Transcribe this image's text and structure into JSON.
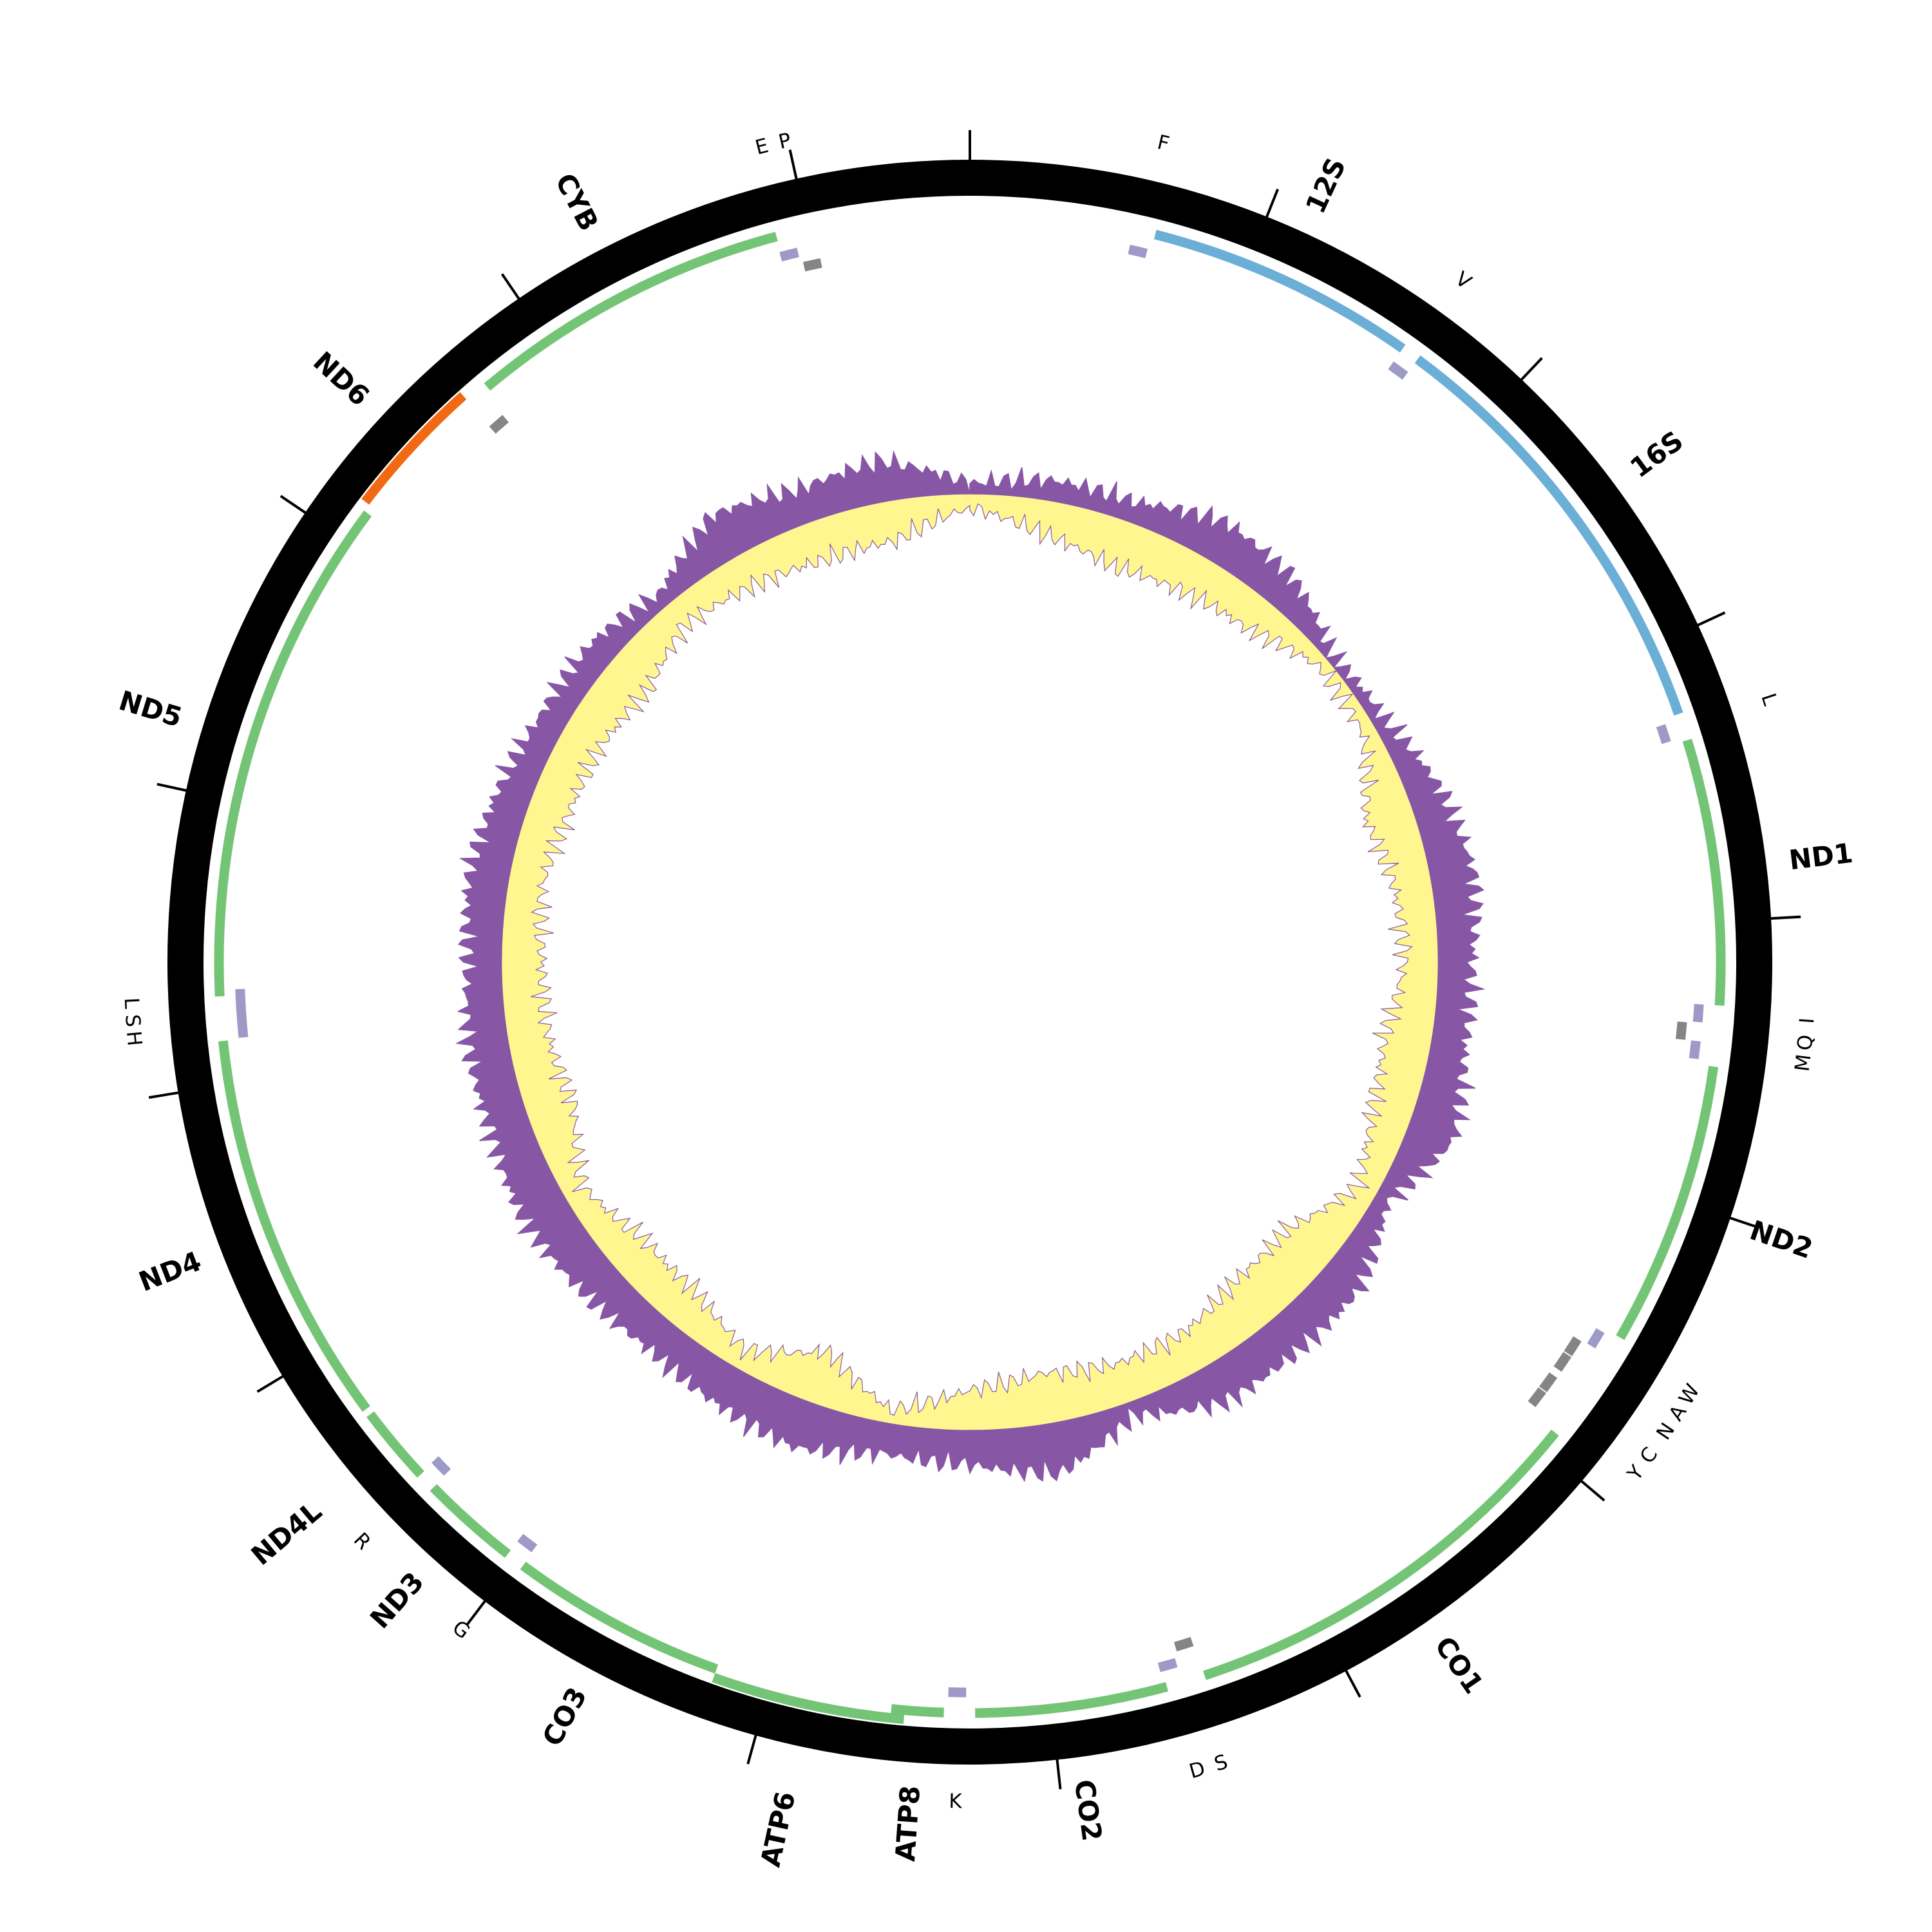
{
  "genome": {
    "genome_length_bp": 16575,
    "tick_interval_bp": 1000
  },
  "colors": {
    "backbone": "#000000",
    "protein_forward": "#74c476",
    "rrna_forward": "#6baed6",
    "gene_reverse": "#f16913",
    "trna_forward": "#9e9ac8",
    "trna_reverse": "#858585",
    "skew_outer": "#8757a6",
    "skew_inner": "#fff68f"
  },
  "genes": [
    {
      "name": "12S",
      "start": 658,
      "end": 1621,
      "strand": "+",
      "type": "rRNA"
    },
    {
      "name": "16S",
      "start": 1685,
      "end": 3255,
      "strand": "+",
      "type": "rRNA"
    },
    {
      "name": "ND1",
      "start": 3352,
      "end": 4296,
      "strand": "+",
      "type": "CDS"
    },
    {
      "name": "ND2",
      "start": 4512,
      "end": 5525,
      "strand": "+",
      "type": "CDS"
    },
    {
      "name": "CO1",
      "start": 5930,
      "end": 7449,
      "strand": "+",
      "type": "CDS"
    },
    {
      "name": "CO2",
      "start": 7587,
      "end": 8269,
      "strand": "+",
      "type": "CDS"
    },
    {
      "name": "ATP8",
      "start": 8379,
      "end": 8564,
      "strand": "+",
      "type": "CDS"
    },
    {
      "name": "ATP6",
      "start": 8517,
      "end": 9195,
      "strand": "+",
      "type": "CDS"
    },
    {
      "name": "CO3",
      "start": 9195,
      "end": 9969,
      "strand": "+",
      "type": "CDS"
    },
    {
      "name": "ND3",
      "start": 10036,
      "end": 10387,
      "strand": "+",
      "type": "CDS"
    },
    {
      "name": "ND4L",
      "start": 10451,
      "end": 10727,
      "strand": "+",
      "type": "CDS"
    },
    {
      "name": "ND4",
      "start": 10750,
      "end": 12154,
      "strand": "+",
      "type": "CDS"
    },
    {
      "name": "ND5",
      "start": 12311,
      "end": 14121,
      "strand": "+",
      "type": "CDS"
    },
    {
      "name": "ND6",
      "start": 14148,
      "end": 14650,
      "strand": "-",
      "type": "CDS"
    },
    {
      "name": "CYB",
      "start": 14733,
      "end": 15888,
      "strand": "+",
      "type": "CDS"
    }
  ],
  "trnas": [
    {
      "name": "F",
      "pos": 612,
      "strand": "+"
    },
    {
      "name": "V",
      "pos": 1653,
      "strand": "+"
    },
    {
      "name": "L",
      "pos": 3306,
      "strand": "+"
    },
    {
      "name": "I",
      "pos": 4328,
      "strand": "+"
    },
    {
      "name": "Q",
      "pos": 4397,
      "strand": "-"
    },
    {
      "name": "M",
      "pos": 4461,
      "strand": "+"
    },
    {
      "name": "W",
      "pos": 5571,
      "strand": "+"
    },
    {
      "name": "A",
      "pos": 5640,
      "strand": "-"
    },
    {
      "name": "N",
      "pos": 5709,
      "strand": "-"
    },
    {
      "name": "C",
      "pos": 5801,
      "strand": "-"
    },
    {
      "name": "Y",
      "pos": 5870,
      "strand": "-"
    },
    {
      "name": "S",
      "pos": 7486,
      "strand": "-"
    },
    {
      "name": "D",
      "pos": 7564,
      "strand": "+"
    },
    {
      "name": "K",
      "pos": 8333,
      "strand": "+"
    },
    {
      "name": "G",
      "pos": 10005,
      "strand": "+"
    },
    {
      "name": "R",
      "pos": 10423,
      "strand": "+"
    },
    {
      "name": "H",
      "pos": 12191,
      "strand": "+"
    },
    {
      "name": "S",
      "pos": 12247,
      "strand": "+"
    },
    {
      "name": "L",
      "pos": 12302,
      "strand": "+"
    },
    {
      "name": "",
      "pos": 14678,
      "strand": "-"
    },
    {
      "name": "E",
      "pos": 15916,
      "strand": "+"
    },
    {
      "name": "P",
      "pos": 15990,
      "strand": "-"
    }
  ],
  "skew_track": {
    "outer_relative": [
      0.19,
      0.38,
      0.38,
      0.75,
      0.63,
      0.13,
      0.25,
      0.63,
      0.81,
      0.63,
      0.63,
      0.88,
      0.25,
      0.75,
      0.75,
      0.75,
      0.25,
      0.94,
      0.63,
      0.56,
      0.88,
      0.75,
      0.63,
      0.75,
      0.88,
      0.75,
      0.75,
      0.63,
      0.75,
      0.63,
      0.5,
      0.5,
      0.25,
      0.88,
      0.63,
      0.75
    ],
    "inner_relative": [
      0.25,
      0.63,
      0.88,
      0.75,
      0.63,
      0.19,
      0.25,
      0.88,
      0.69,
      0.63,
      0.88,
      0.75,
      0.38,
      1.0,
      1.0,
      0.75,
      0.75,
      0.94,
      0.75,
      0.25,
      1.0,
      0.38,
      0.75,
      0.75,
      0.38,
      0.88,
      0.75,
      0.75,
      0.63,
      0.75,
      0.75,
      0.88,
      0.5,
      0.63,
      0.75,
      0.75
    ]
  }
}
